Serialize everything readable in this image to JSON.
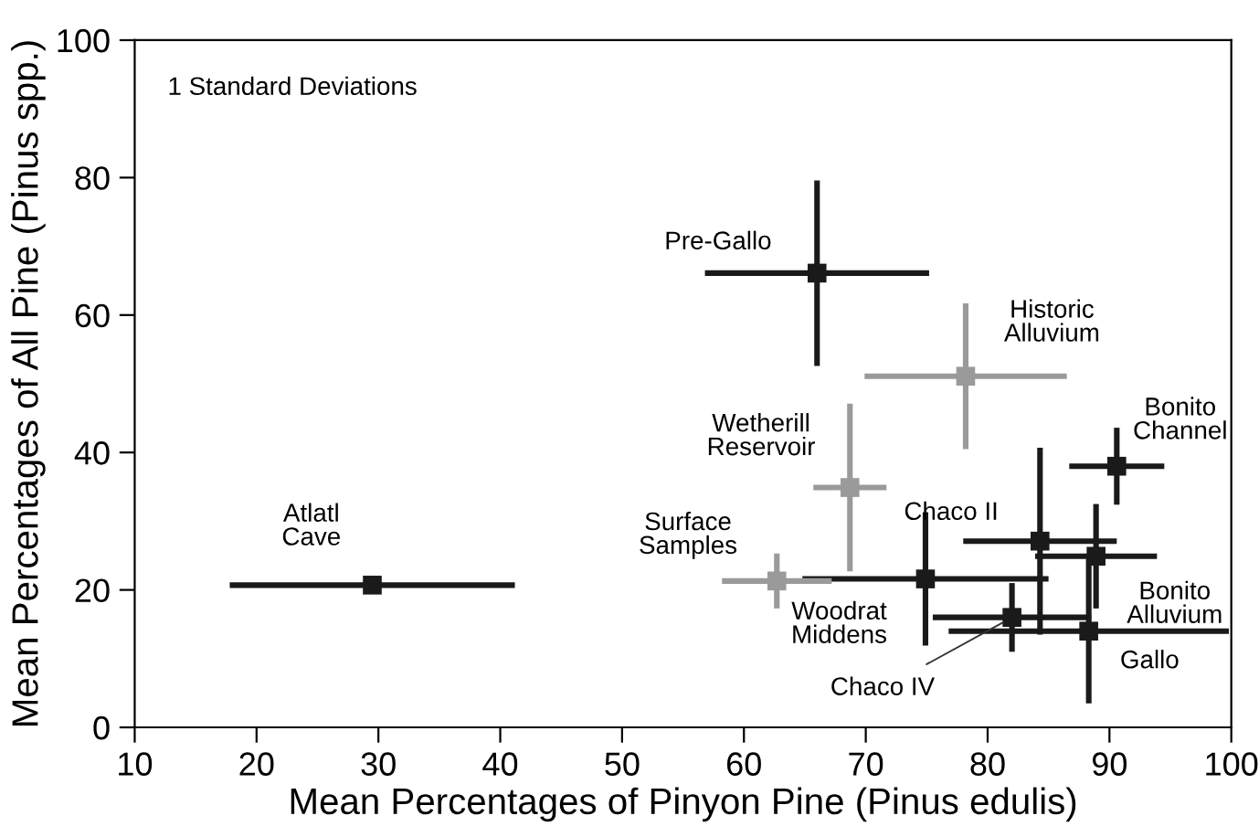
{
  "chart_data": {
    "type": "scatter",
    "xlabel": "Mean Percentages of Pinyon Pine (Pinus edulis)",
    "ylabel": "Mean Percentages of All Pine (Pinus spp.)",
    "xlim": [
      10,
      100
    ],
    "xticks": [
      10,
      20,
      30,
      40,
      50,
      60,
      70,
      80,
      90,
      100
    ],
    "ylim": [
      0,
      100
    ],
    "yticks": [
      0,
      20,
      40,
      60,
      80,
      100
    ],
    "grid": false,
    "legend": false,
    "marker": "square",
    "series": [
      {
        "color": "#1a1a1a",
        "x": [
          29.5,
          66.0,
          74.9,
          84.3,
          88.9,
          90.6,
          82.0,
          88.3
        ],
        "values": [
          20.7,
          66.1,
          21.6,
          27.1,
          24.9,
          38.0,
          16.0,
          14.0
        ],
        "xerrors": [
          11.7,
          9.2,
          10.1,
          6.3,
          5.0,
          3.9,
          6.5,
          11.5
        ],
        "errors": [
          null,
          13.5,
          9.7,
          13.6,
          7.6,
          5.6,
          5.0,
          10.5
        ]
      },
      {
        "color": "#9a9a9a",
        "x": [
          78.2,
          68.7,
          62.7
        ],
        "values": [
          51.1,
          34.9,
          21.3
        ],
        "xerrors": [
          8.3,
          3.0,
          4.5
        ],
        "errors": [
          10.6,
          12.2,
          4.0
        ]
      }
    ],
    "annotations": [
      "1 Standard Deviations",
      {
        "text": "Atlatl\nCave",
        "x": 29.5,
        "y": 20.7
      },
      {
        "text": "Pre-Gallo",
        "x": 66.0,
        "y": 66.1
      },
      {
        "text": "Woodrat\nMiddens",
        "x": 74.9,
        "y": 21.6
      },
      {
        "text": "Chaco II",
        "x": 84.3,
        "y": 27.1
      },
      {
        "text": "Bonito\nAlluvium",
        "x": 88.9,
        "y": 24.9
      },
      {
        "text": "Bonito\nChannel",
        "x": 90.6,
        "y": 38.0
      },
      {
        "text": "Chaco IV",
        "x": 82.0,
        "y": 16.0
      },
      {
        "text": "Gallo",
        "x": 88.3,
        "y": 14.0
      },
      {
        "text": "Historic\nAlluvium",
        "x": 78.2,
        "y": 51.1
      },
      {
        "text": "Wetherill\nReservoir",
        "x": 68.7,
        "y": 34.9
      },
      {
        "text": "Surface\nSamples",
        "x": 62.7,
        "y": 21.3
      }
    ]
  }
}
